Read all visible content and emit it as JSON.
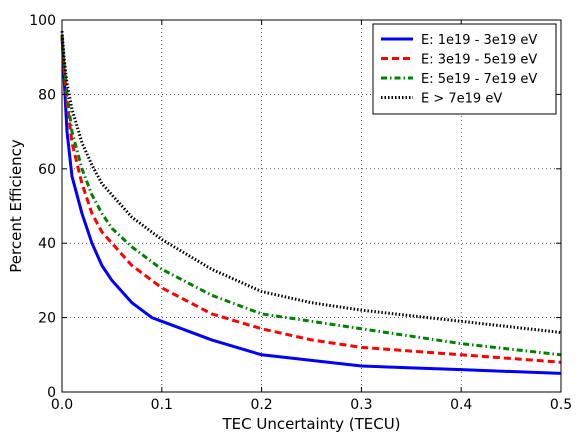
{
  "chart_data": {
    "type": "line",
    "title": "",
    "xlabel": "TEC Uncertainty (TECU)",
    "ylabel": "Percent Efficiency",
    "xlim": [
      0.0,
      0.5
    ],
    "ylim": [
      0,
      100
    ],
    "xticks": [
      0.0,
      0.1,
      0.2,
      0.3,
      0.4,
      0.5
    ],
    "xtick_labels": [
      "0.0",
      "0.1",
      "0.2",
      "0.3",
      "0.4",
      "0.5"
    ],
    "yticks": [
      0,
      20,
      40,
      60,
      80,
      100
    ],
    "ytick_labels": [
      "0",
      "20",
      "40",
      "60",
      "80",
      "100"
    ],
    "grid": true,
    "legend_position": "top-right",
    "series": [
      {
        "name": "E: 1e19 - 3e19 eV",
        "color": "#0000ff",
        "style": "solid",
        "x": [
          0.0,
          0.002,
          0.005,
          0.01,
          0.02,
          0.03,
          0.04,
          0.05,
          0.07,
          0.09,
          0.1,
          0.15,
          0.2,
          0.25,
          0.3,
          0.35,
          0.4,
          0.45,
          0.5
        ],
        "y": [
          96,
          85,
          70,
          58,
          48,
          40,
          34,
          30,
          24,
          20,
          19,
          14,
          10,
          8.5,
          7,
          6.5,
          6,
          5.5,
          5
        ]
      },
      {
        "name": "E: 3e19 - 5e19 eV",
        "color": "#ff0000",
        "style": "dashed",
        "x": [
          0.0,
          0.002,
          0.005,
          0.01,
          0.02,
          0.03,
          0.04,
          0.05,
          0.07,
          0.1,
          0.15,
          0.2,
          0.25,
          0.3,
          0.35,
          0.4,
          0.45,
          0.5
        ],
        "y": [
          96,
          87,
          78,
          67,
          56,
          48,
          43,
          40,
          34,
          28,
          21,
          17,
          14,
          12,
          11,
          10,
          9,
          8
        ]
      },
      {
        "name": "E: 5e19 - 7e19 eV",
        "color": "#008000",
        "style": "dashdot",
        "x": [
          0.0,
          0.002,
          0.005,
          0.01,
          0.02,
          0.03,
          0.04,
          0.05,
          0.07,
          0.1,
          0.15,
          0.2,
          0.25,
          0.3,
          0.35,
          0.4,
          0.45,
          0.5
        ],
        "y": [
          96,
          89,
          80,
          70,
          60,
          53,
          48,
          44,
          39,
          33,
          26,
          21,
          19,
          17,
          15,
          13,
          11.5,
          10
        ]
      },
      {
        "name": "E > 7e19 eV",
        "color": "#000000",
        "style": "dotted",
        "x": [
          0.0,
          0.002,
          0.005,
          0.01,
          0.02,
          0.03,
          0.04,
          0.05,
          0.07,
          0.1,
          0.15,
          0.2,
          0.25,
          0.3,
          0.35,
          0.4,
          0.45,
          0.5
        ],
        "y": [
          97,
          90,
          83,
          76,
          67,
          61,
          56,
          53,
          47,
          41,
          33,
          27,
          24,
          22,
          20.5,
          19,
          17.5,
          16
        ]
      }
    ]
  }
}
